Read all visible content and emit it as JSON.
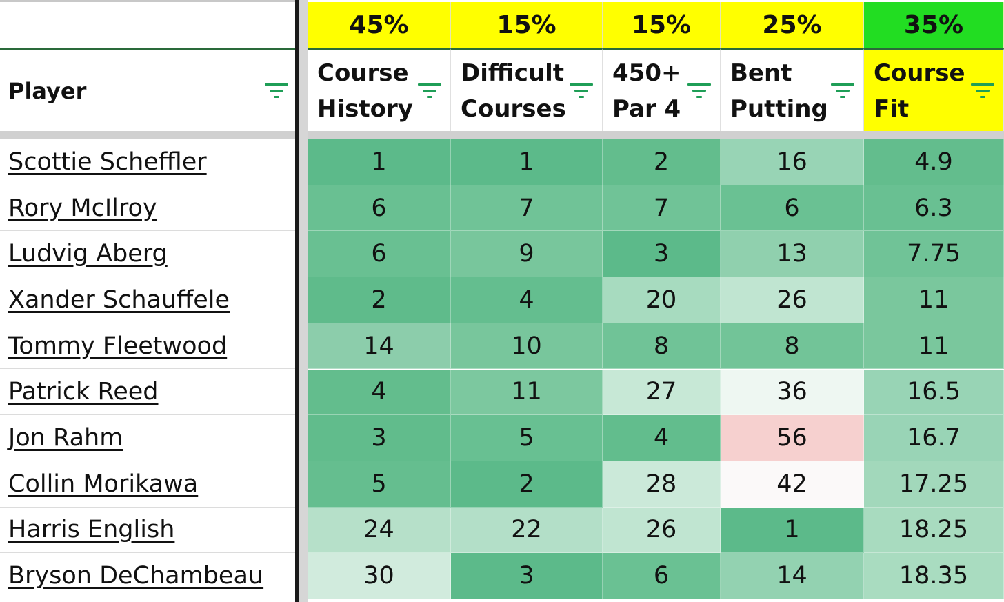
{
  "header": {
    "player_label": "Player",
    "columns": [
      {
        "weight": "45%",
        "label": "Course\nHistory",
        "weight_color": "#ffff00"
      },
      {
        "weight": "15%",
        "label": "Difficult\nCourses",
        "weight_color": "#ffff00"
      },
      {
        "weight": "15%",
        "label": "450+\nPar 4",
        "weight_color": "#ffff00"
      },
      {
        "weight": "25%",
        "label": "Bent\nPutting",
        "weight_color": "#ffff00"
      },
      {
        "weight": "35%",
        "label": "Course\nFit",
        "weight_color": "#22dd22"
      }
    ]
  },
  "rows": [
    {
      "player": "Scottie Scheffler",
      "values": [
        "1",
        "1",
        "2",
        "16",
        "4.9"
      ]
    },
    {
      "player": "Rory McIlroy",
      "values": [
        "6",
        "7",
        "7",
        "6",
        "6.3"
      ]
    },
    {
      "player": "Ludvig Aberg",
      "values": [
        "6",
        "9",
        "3",
        "13",
        "7.75"
      ]
    },
    {
      "player": "Xander Schauffele",
      "values": [
        "2",
        "4",
        "20",
        "26",
        "11"
      ]
    },
    {
      "player": "Tommy Fleetwood",
      "values": [
        "14",
        "10",
        "8",
        "8",
        "11"
      ]
    },
    {
      "player": "Patrick Reed",
      "values": [
        "4",
        "11",
        "27",
        "36",
        "16.5"
      ]
    },
    {
      "player": "Jon Rahm",
      "values": [
        "3",
        "5",
        "4",
        "56",
        "16.7"
      ]
    },
    {
      "player": "Collin Morikawa",
      "values": [
        "5",
        "2",
        "28",
        "42",
        "17.25"
      ]
    },
    {
      "player": "Harris English",
      "values": [
        "24",
        "22",
        "26",
        "1",
        "18.25"
      ]
    },
    {
      "player": "Bryson DeChambeau",
      "values": [
        "30",
        "3",
        "6",
        "14",
        "18.35"
      ]
    }
  ],
  "cell_colors": [
    [
      "#5cba8a",
      "#5cba8a",
      "#63bd8d",
      "#98d4b5",
      "#63bd8d"
    ],
    [
      "#69c092",
      "#70c397",
      "#70c397",
      "#6ac193",
      "#69c092"
    ],
    [
      "#69c092",
      "#78c69c",
      "#5cba8a",
      "#90d0ae",
      "#70c397"
    ],
    [
      "#5fbb8b",
      "#64be8f",
      "#a7dbbf",
      "#c0e5d1",
      "#7ac79d"
    ],
    [
      "#8ccdab",
      "#78c69c",
      "#70c397",
      "#72c498",
      "#7ac79d"
    ],
    [
      "#63bd8d",
      "#7cc89f",
      "#c7e8d6",
      "#eef7f2",
      "#98d4b5"
    ],
    [
      "#61bc8c",
      "#68c092",
      "#62bd8d",
      "#f6d0cf",
      "#99d4b6"
    ],
    [
      "#65be8f",
      "#5cba8a",
      "#cbe9d9",
      "#fbf9f9",
      "#a2d8bb"
    ],
    [
      "#b6e0c9",
      "#b3dfc8",
      "#c0e5d1",
      "#5cba8a",
      "#a8dbbf"
    ],
    [
      "#d1ebdd",
      "#5cba8a",
      "#6ac193",
      "#93d2b1",
      "#a9dcc0"
    ]
  ],
  "filter_icon": "filter-icon",
  "colors": {
    "filter_icon": "#1f9e57",
    "course_fit_header": "#ffff00",
    "weight_bar": "#ffff00",
    "course_fit_weight": "#22dd22"
  }
}
